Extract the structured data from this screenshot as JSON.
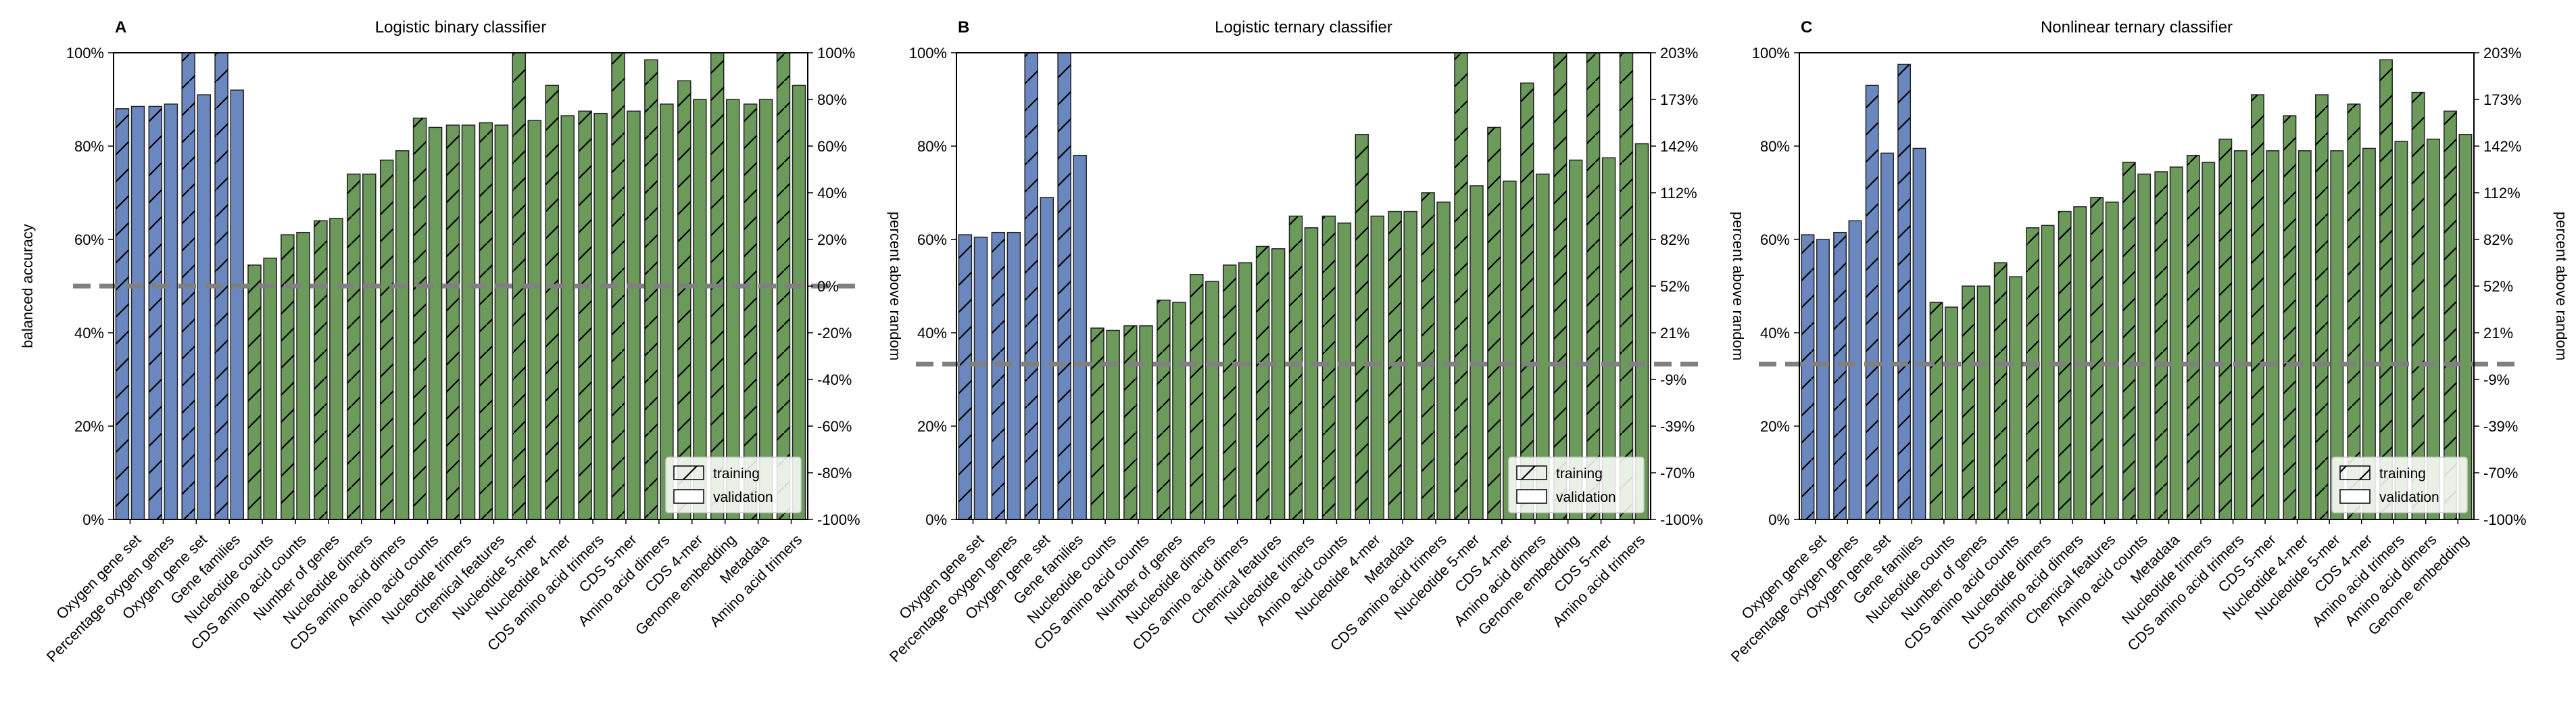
{
  "colors": {
    "blue": "#6a88bf",
    "green": "#6b9a5a",
    "edge": "#222222",
    "random_line": "#808080"
  },
  "legend": {
    "training": "training",
    "validation": "validation"
  },
  "chart_data": [
    {
      "type": "bar",
      "panel": "A",
      "title": "Logistic binary classifier",
      "ylabel": "balanced accuracy",
      "ylabel_right": "percent above random",
      "ylim": [
        0,
        100
      ],
      "yticks": [
        0,
        20,
        40,
        60,
        80,
        100
      ],
      "ytick_labels": [
        "0%",
        "20%",
        "40%",
        "60%",
        "80%",
        "100%"
      ],
      "right_ticks": [
        0,
        10,
        20,
        30,
        40,
        50,
        60,
        70,
        80,
        90,
        100
      ],
      "right_tick_labels": [
        "-100%",
        "-80%",
        "-60%",
        "-40%",
        "-20%",
        "0%",
        "20%",
        "40%",
        "60%",
        "80%",
        "100%"
      ],
      "random_baseline": 50,
      "legend_position": "lower-right",
      "categories": [
        "Oxygen gene set",
        "Percentage oxygen genes",
        "Oxygen gene set",
        "Gene families",
        "Nucleotide counts",
        "CDS amino acid counts",
        "Number of genes",
        "Nucleotide dimers",
        "CDS amino acid dimers",
        "Amino acid counts",
        "Nucleotide trimers",
        "Chemical features",
        "Nucleotide 5-mer",
        "Nucleotide 4-mer",
        "CDS amino acid trimers",
        "CDS 5-mer",
        "Amino acid dimers",
        "CDS 4-mer",
        "Genome embedding",
        "Metadata",
        "Amino acid trimers"
      ],
      "category_group": [
        "blue",
        "blue",
        "blue",
        "blue",
        "green",
        "green",
        "green",
        "green",
        "green",
        "green",
        "green",
        "green",
        "green",
        "green",
        "green",
        "green",
        "green",
        "green",
        "green",
        "green",
        "green"
      ],
      "series": [
        {
          "name": "training",
          "values": [
            88,
            88.5,
            100,
            100,
            54.5,
            61,
            64,
            74,
            77,
            86,
            84.5,
            85,
            100,
            93,
            87.5,
            100,
            98.5,
            94,
            100,
            89,
            100
          ]
        },
        {
          "name": "validation",
          "values": [
            88.5,
            89,
            91,
            92,
            56,
            61.5,
            64.5,
            74,
            79,
            84,
            84.5,
            84.5,
            85.5,
            86.5,
            87,
            87.5,
            89,
            90,
            90,
            90,
            93
          ]
        }
      ]
    },
    {
      "type": "bar",
      "panel": "B",
      "title": "Logistic ternary classifier",
      "ylabel": "",
      "ylabel_right": "percent above random",
      "ylim": [
        0,
        100
      ],
      "yticks": [
        0,
        20,
        40,
        60,
        80,
        100
      ],
      "ytick_labels": [
        "0%",
        "20%",
        "40%",
        "60%",
        "80%",
        "100%"
      ],
      "right_ticks": [
        0,
        10,
        20,
        30,
        40,
        50,
        60,
        70,
        80,
        90,
        100
      ],
      "right_tick_labels": [
        "-100%",
        "-70%",
        "-39%",
        "-9%",
        "21%",
        "52%",
        "82%",
        "112%",
        "142%",
        "173%",
        "203%"
      ],
      "random_baseline": 33.3,
      "legend_position": "lower-right",
      "categories": [
        "Oxygen gene set",
        "Percentage oxygen genes",
        "Oxygen gene set",
        "Gene families",
        "Nucleotide counts",
        "CDS amino acid counts",
        "Number of genes",
        "Nucleotide dimers",
        "CDS amino acid dimers",
        "Chemical features",
        "Nucleotide trimers",
        "Amino acid counts",
        "Nucleotide 4-mer",
        "Metadata",
        "CDS amino acid trimers",
        "Nucleotide 5-mer",
        "CDS 4-mer",
        "Amino acid dimers",
        "Genome embedding",
        "CDS 5-mer",
        "Amino acid trimers"
      ],
      "category_group": [
        "blue",
        "blue",
        "blue",
        "blue",
        "green",
        "green",
        "green",
        "green",
        "green",
        "green",
        "green",
        "green",
        "green",
        "green",
        "green",
        "green",
        "green",
        "green",
        "green",
        "green",
        "green"
      ],
      "series": [
        {
          "name": "training",
          "values": [
            61,
            61.5,
            100,
            100,
            41,
            41.5,
            47,
            52.5,
            54.5,
            58.5,
            65,
            65,
            82.5,
            66,
            70,
            100,
            84,
            93.5,
            100,
            100,
            100
          ]
        },
        {
          "name": "validation",
          "values": [
            60.5,
            61.5,
            69,
            78,
            40.5,
            41.5,
            46.5,
            51,
            55,
            58,
            62.5,
            63.5,
            65,
            66,
            68,
            71.5,
            72.5,
            74,
            77,
            77.5,
            80.5
          ]
        }
      ]
    },
    {
      "type": "bar",
      "panel": "C",
      "title": "Nonlinear ternary classifier",
      "ylabel": "",
      "ylabel_right": "percent above random",
      "ylim": [
        0,
        100
      ],
      "yticks": [
        0,
        20,
        40,
        60,
        80,
        100
      ],
      "ytick_labels": [
        "0%",
        "20%",
        "40%",
        "60%",
        "80%",
        "100%"
      ],
      "right_ticks": [
        0,
        10,
        20,
        30,
        40,
        50,
        60,
        70,
        80,
        90,
        100
      ],
      "right_tick_labels": [
        "-100%",
        "-70%",
        "-39%",
        "-9%",
        "21%",
        "52%",
        "82%",
        "112%",
        "142%",
        "173%",
        "203%"
      ],
      "random_baseline": 33.3,
      "legend_position": "lower-right",
      "categories": [
        "Oxygen gene set",
        "Percentage oxygen genes",
        "Oxygen gene set",
        "Gene families",
        "Nucleotide counts",
        "Number of genes",
        "CDS amino acid counts",
        "Nucleotide dimers",
        "CDS amino acid dimers",
        "Chemical features",
        "Amino acid counts",
        "Metadata",
        "Nucleotide trimers",
        "CDS amino acid trimers",
        "CDS 5-mer",
        "Nucleotide 4-mer",
        "Nucleotide 5-mer",
        "CDS 4-mer",
        "Amino acid trimers",
        "Amino acid dimers",
        "Genome embedding"
      ],
      "category_group": [
        "blue",
        "blue",
        "blue",
        "blue",
        "green",
        "green",
        "green",
        "green",
        "green",
        "green",
        "green",
        "green",
        "green",
        "green",
        "green",
        "green",
        "green",
        "green",
        "green",
        "green",
        "green"
      ],
      "series": [
        {
          "name": "training",
          "values": [
            61,
            61.5,
            93,
            97.5,
            46.5,
            50,
            55,
            62.5,
            66,
            69,
            76.5,
            74.5,
            78,
            81.5,
            91,
            86.5,
            91,
            89,
            98.5,
            91.5,
            87.5
          ]
        },
        {
          "name": "validation",
          "values": [
            60,
            64,
            78.5,
            79.5,
            45.5,
            50,
            52,
            63,
            67,
            68,
            74,
            75.5,
            76.5,
            79,
            79,
            79,
            79,
            79.5,
            81,
            81.5,
            82.5
          ]
        }
      ]
    }
  ]
}
